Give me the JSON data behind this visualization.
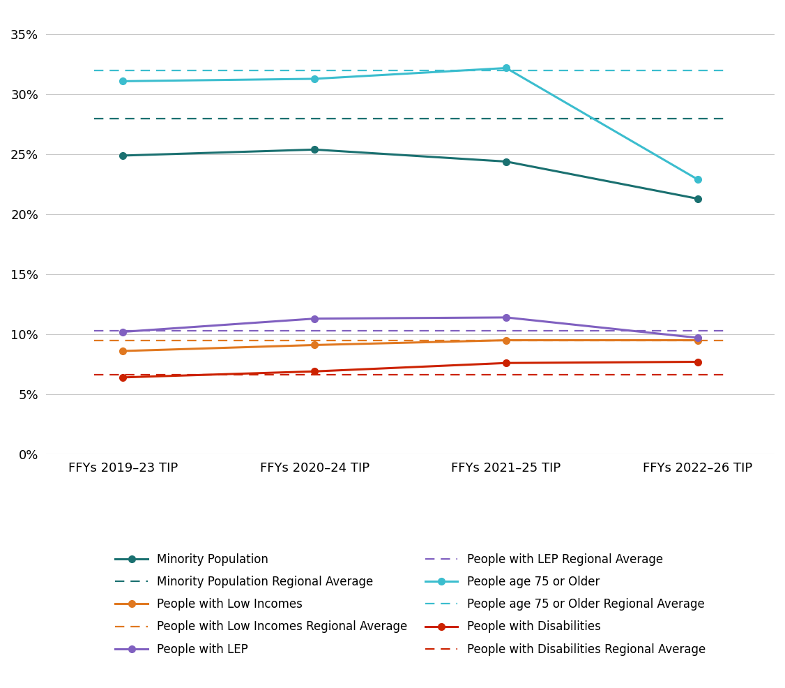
{
  "x_labels": [
    "FFYs 2019–23 TIP",
    "FFYs 2020–24 TIP",
    "FFYs 2021–25 TIP",
    "FFYs 2022–26 TIP"
  ],
  "x_positions": [
    0,
    1,
    2,
    3
  ],
  "series_order": [
    "minority",
    "low_income",
    "lep",
    "age75",
    "disabilities"
  ],
  "series": {
    "minority": {
      "label": "Minority Population",
      "avg_label": "Minority Population Regional Average",
      "values": [
        0.249,
        0.254,
        0.244,
        0.213
      ],
      "color": "#1a7070",
      "avg": 0.28,
      "avg_color": "#1a7070"
    },
    "low_income": {
      "label": "People with Low Incomes",
      "avg_label": "People with Low Incomes Regional Average",
      "values": [
        0.086,
        0.091,
        0.095,
        0.095
      ],
      "color": "#e07820",
      "avg": 0.095,
      "avg_color": "#e07820"
    },
    "lep": {
      "label": "People with LEP",
      "avg_label": "People with LEP Regional Average",
      "values": [
        0.102,
        0.113,
        0.114,
        0.097
      ],
      "color": "#8060c0",
      "avg": 0.103,
      "avg_color": "#8060c0"
    },
    "age75": {
      "label": "People age 75 or Older",
      "avg_label": "People age 75 or Older Regional Average",
      "values": [
        0.311,
        0.313,
        0.322,
        0.229
      ],
      "color": "#3bbdce",
      "avg": 0.32,
      "avg_color": "#3bbdce"
    },
    "disabilities": {
      "label": "People with Disabilities",
      "avg_label": "People with Disabilities Regional Average",
      "values": [
        0.064,
        0.069,
        0.076,
        0.077
      ],
      "color": "#cc2200",
      "avg": 0.066,
      "avg_color": "#cc2200"
    }
  },
  "ylim": [
    0,
    0.37
  ],
  "yticks": [
    0.0,
    0.05,
    0.1,
    0.15,
    0.2,
    0.25,
    0.3,
    0.35
  ],
  "ytick_labels": [
    "0%",
    "5%",
    "10%",
    "15%",
    "20%",
    "25%",
    "30%",
    "35%"
  ],
  "background_color": "#ffffff",
  "grid_color": "#c8c8c8"
}
